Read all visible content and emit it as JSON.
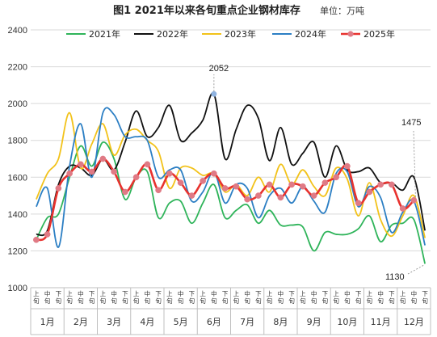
{
  "header": {
    "title": "图1  2021年以来各旬重点企业钢材库存",
    "unit": "单位：万吨"
  },
  "chart_data": {
    "type": "line",
    "title": "图1  2021年以来各旬重点企业钢材库存",
    "ylabel": "",
    "xlabel": "",
    "ylim": [
      1000,
      2400
    ],
    "yticks": [
      1000,
      1200,
      1400,
      1600,
      1800,
      2000,
      2200,
      2400
    ],
    "grid": true,
    "legend_position": "top",
    "categories": [
      "上旬",
      "中旬",
      "下旬",
      "上旬",
      "中旬",
      "下旬",
      "上旬",
      "中旬",
      "下旬",
      "上旬",
      "中旬",
      "下旬",
      "上旬",
      "中旬",
      "下旬",
      "上旬",
      "中旬",
      "下旬",
      "上旬",
      "中旬",
      "下旬",
      "上旬",
      "中旬",
      "下旬",
      "上旬",
      "中旬",
      "下旬",
      "上旬",
      "中旬",
      "下旬",
      "上旬",
      "中旬",
      "下旬",
      "上旬",
      "中旬",
      "下旬"
    ],
    "months": [
      "1月",
      "2月",
      "3月",
      "4月",
      "5月",
      "6月",
      "7月",
      "8月",
      "9月",
      "10月",
      "11月",
      "12月"
    ],
    "series": [
      {
        "name": "2021年",
        "color": "#2fb45a",
        "marker": false,
        "values": [
          1260,
          1380,
          1400,
          1600,
          1770,
          1660,
          1790,
          1700,
          1480,
          1600,
          1630,
          1380,
          1460,
          1470,
          1350,
          1460,
          1560,
          1380,
          1420,
          1450,
          1350,
          1420,
          1340,
          1340,
          1330,
          1200,
          1300,
          1290,
          1290,
          1320,
          1390,
          1250,
          1340,
          1350,
          1370,
          1130
        ]
      },
      {
        "name": "2022年",
        "color": "#111111",
        "marker": false,
        "values": [
          1290,
          1310,
          1560,
          1660,
          1650,
          1610,
          1700,
          1640,
          1790,
          1960,
          1820,
          1870,
          1990,
          1800,
          1840,
          1910,
          2052,
          1700,
          1860,
          1990,
          1920,
          1690,
          1870,
          1670,
          1730,
          1790,
          1600,
          1770,
          1640,
          1630,
          1650,
          1570,
          1570,
          1530,
          1600,
          1310
        ]
      },
      {
        "name": "2023年",
        "color": "#f2c21a",
        "marker": false,
        "values": [
          1480,
          1620,
          1700,
          1950,
          1650,
          1780,
          1890,
          1720,
          1830,
          1860,
          1800,
          1740,
          1540,
          1650,
          1650,
          1610,
          1620,
          1520,
          1560,
          1500,
          1600,
          1520,
          1670,
          1560,
          1640,
          1550,
          1500,
          1650,
          1590,
          1390,
          1570,
          1370,
          1280,
          1390,
          1500,
          1270
        ]
      },
      {
        "name": "2024年",
        "color": "#2c7fc4",
        "marker": false,
        "values": [
          1440,
          1540,
          1220,
          1660,
          1890,
          1600,
          1950,
          1940,
          1820,
          1820,
          1800,
          1600,
          1640,
          1640,
          1470,
          1520,
          1630,
          1460,
          1560,
          1540,
          1380,
          1500,
          1540,
          1460,
          1550,
          1470,
          1410,
          1620,
          1630,
          1440,
          1550,
          1490,
          1300,
          1410,
          1470,
          1230
        ]
      },
      {
        "name": "2025年",
        "color": "#e8322e",
        "marker": true,
        "markerColor": "#e07a85",
        "values": [
          1260,
          1290,
          1540,
          1620,
          1670,
          1630,
          1700,
          1630,
          1520,
          1600,
          1670,
          1530,
          1620,
          1570,
          1500,
          1580,
          1620,
          1540,
          1550,
          1480,
          1500,
          1560,
          1490,
          1560,
          1550,
          1500,
          1570,
          1600,
          1660,
          1460,
          1520,
          1560,
          1560,
          1430,
          1475,
          null
        ]
      }
    ],
    "annotations": [
      {
        "text": "2052",
        "series": "2022年",
        "index": 16
      },
      {
        "text": "1475",
        "series": "2025年",
        "index": 34
      },
      {
        "text": "1130",
        "series": "2021年",
        "index": 35
      }
    ]
  }
}
